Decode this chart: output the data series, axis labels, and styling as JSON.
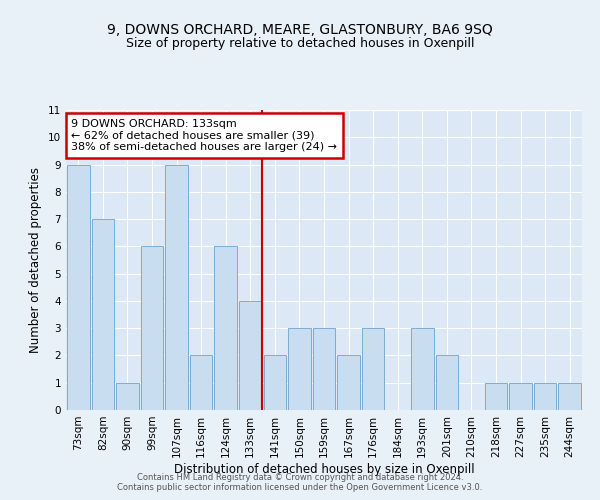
{
  "title1": "9, DOWNS ORCHARD, MEARE, GLASTONBURY, BA6 9SQ",
  "title2": "Size of property relative to detached houses in Oxenpill",
  "xlabel": "Distribution of detached houses by size in Oxenpill",
  "ylabel": "Number of detached properties",
  "bins": [
    "73sqm",
    "82sqm",
    "90sqm",
    "99sqm",
    "107sqm",
    "116sqm",
    "124sqm",
    "133sqm",
    "141sqm",
    "150sqm",
    "159sqm",
    "167sqm",
    "176sqm",
    "184sqm",
    "193sqm",
    "201sqm",
    "210sqm",
    "218sqm",
    "227sqm",
    "235sqm",
    "244sqm"
  ],
  "counts": [
    9,
    7,
    1,
    6,
    9,
    2,
    6,
    4,
    2,
    3,
    3,
    2,
    3,
    0,
    3,
    2,
    0,
    1,
    1,
    1,
    1
  ],
  "reference_line_index": 7,
  "bar_color": "#c9ddf0",
  "bar_edge_color": "#7aadd4",
  "ref_line_color": "#cc0000",
  "annotation_line1": "9 DOWNS ORCHARD: 133sqm",
  "annotation_line2": "← 62% of detached houses are smaller (39)",
  "annotation_line3": "38% of semi-detached houses are larger (24) →",
  "annotation_box_edge": "#cc0000",
  "ylim": [
    0,
    11
  ],
  "yticks": [
    0,
    1,
    2,
    3,
    4,
    5,
    6,
    7,
    8,
    9,
    10,
    11
  ],
  "footer1": "Contains HM Land Registry data © Crown copyright and database right 2024.",
  "footer2": "Contains public sector information licensed under the Open Government Licence v3.0.",
  "bg_color": "#e8f0f8",
  "plot_bg_color": "#dce8f5",
  "grid_color": "#ffffff",
  "title1_fontsize": 10,
  "title2_fontsize": 9,
  "xlabel_fontsize": 8.5,
  "ylabel_fontsize": 8.5,
  "tick_fontsize": 7.5,
  "footer_fontsize": 6,
  "annot_fontsize": 8
}
